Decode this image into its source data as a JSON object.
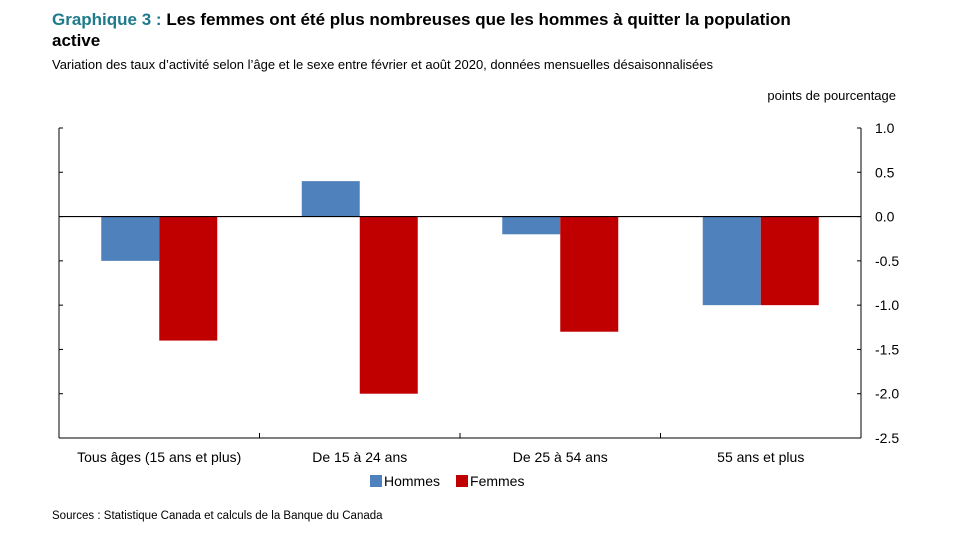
{
  "title_prefix": "Graphique 3 :",
  "title": "Les femmes ont été plus nombreuses que les hommes à quitter la population active",
  "subtitle": "Variation des taux d’activité selon l’âge et le sexe entre février et août 2020, données mensuelles désaisonnalisées",
  "unit_label": "points de pourcentage",
  "source": "Sources : Statistique Canada et calculs de la Banque du Canada",
  "colors": {
    "hommes": "#4f81bd",
    "femmes": "#c00000"
  },
  "chart_data": {
    "type": "bar",
    "categories": [
      "Tous âges (15 ans et plus)",
      "De 15 à 24 ans",
      "De 25 à 54 ans",
      "55 ans et plus"
    ],
    "series": [
      {
        "name": "Hommes",
        "values": [
          -0.5,
          0.4,
          -0.2,
          -1.0
        ]
      },
      {
        "name": "Femmes",
        "values": [
          -1.4,
          -2.0,
          -1.3,
          -1.0
        ]
      }
    ],
    "ylim": [
      -2.5,
      1.0
    ],
    "yticks": [
      "1.0",
      "0.5",
      "0.0",
      "-0.5",
      "-1.0",
      "-1.5",
      "-2.0",
      "-2.5"
    ],
    "ytick_values": [
      1.0,
      0.5,
      0.0,
      -0.5,
      -1.0,
      -1.5,
      -2.0,
      -2.5
    ],
    "axis_position": "right",
    "legend": "bottom"
  }
}
